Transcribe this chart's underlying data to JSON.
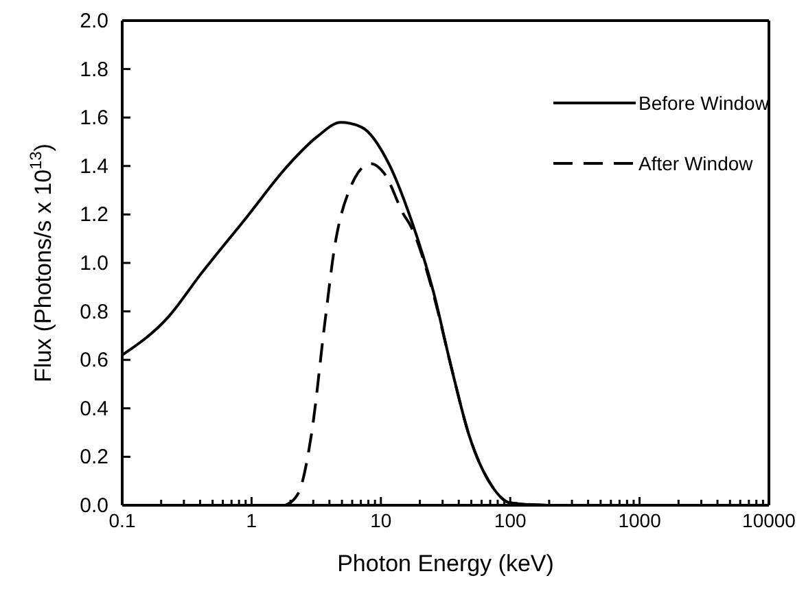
{
  "chart_data": {
    "type": "line",
    "xlabel": "Photon Energy (keV)",
    "ylabel": "Flux (Photons/s x 10$^{13}$)",
    "log": "x",
    "xlim": [
      0.1,
      10000
    ],
    "ylim": [
      0,
      2.0
    ],
    "xticks": [
      0.1,
      {
        "value": 0.2,
        "label": null
      },
      {
        "value": 0.3,
        "label": null
      },
      {
        "value": 0.4,
        "label": null
      },
      {
        "value": 0.5,
        "label": null
      },
      {
        "value": 0.6,
        "label": null
      },
      {
        "value": 0.7,
        "label": null
      },
      {
        "value": 0.8,
        "label": null
      },
      {
        "value": 0.9,
        "label": null
      },
      1,
      {
        "value": 2,
        "label": null
      },
      {
        "value": 3,
        "label": null
      },
      {
        "value": 4,
        "label": null
      },
      {
        "value": 5,
        "label": null
      },
      {
        "value": 6,
        "label": null
      },
      {
        "value": 7,
        "label": null
      },
      {
        "value": 8,
        "label": null
      },
      {
        "value": 9,
        "label": null
      },
      10,
      {
        "value": 20,
        "label": null
      },
      {
        "value": 30,
        "label": null
      },
      {
        "value": 40,
        "label": null
      },
      {
        "value": 50,
        "label": null
      },
      {
        "value": 60,
        "label": null
      },
      {
        "value": 70,
        "label": null
      },
      {
        "value": 80,
        "label": null
      },
      {
        "value": 90,
        "label": null
      },
      100,
      {
        "value": 200,
        "label": null
      },
      {
        "value": 300,
        "label": null
      },
      {
        "value": 400,
        "label": null
      },
      {
        "value": 500,
        "label": null
      },
      {
        "value": 600,
        "label": null
      },
      {
        "value": 700,
        "label": null
      },
      {
        "value": 800,
        "label": null
      },
      {
        "value": 900,
        "label": null
      },
      1000,
      {
        "value": 2000,
        "label": null
      },
      {
        "value": 3000,
        "label": null
      },
      {
        "value": 4000,
        "label": null
      },
      {
        "value": 5000,
        "label": null
      },
      {
        "value": 6000,
        "label": null
      },
      {
        "value": 7000,
        "label": null
      },
      {
        "value": 8000,
        "label": null
      },
      {
        "value": 9000,
        "label": null
      },
      10000
    ],
    "yticks": [
      {
        "value": 0,
        "label": "0.0"
      },
      0.2,
      0.4,
      0.6,
      0.8,
      {
        "value": 1,
        "label": "1.0"
      },
      1.2,
      1.4,
      1.6,
      1.8,
      {
        "value": 2,
        "label": "2.0"
      }
    ],
    "legend": "top right",
    "marker": "none",
    "series": [
      {
        "name": "Before Window",
        "color": "#000000",
        "line_style": "solid",
        "x": [
          0.1,
          0.23,
          0.4,
          0.89,
          1.97,
          3.2,
          4.9,
          7.1,
          11.5,
          17.1,
          25.5,
          35,
          48,
          72,
          100,
          200,
          10000
        ],
        "values": [
          0.62,
          0.78,
          0.95,
          1.18,
          1.41,
          1.52,
          1.58,
          1.56,
          1.41,
          1.18,
          0.88,
          0.57,
          0.29,
          0.08,
          0.01,
          0,
          0
        ]
      },
      {
        "name": "After Window",
        "color": "#000000",
        "line_style": "dashed",
        "x": [
          1.82,
          2.3,
          2.9,
          3.7,
          4.4,
          5.6,
          8.3,
          10.6,
          15,
          17.1,
          25.5,
          35,
          48,
          72,
          100,
          200
        ],
        "values": [
          0,
          0.05,
          0.29,
          0.76,
          1.07,
          1.29,
          1.41,
          1.37,
          1.2,
          1.15,
          0.87,
          0.57,
          0.29,
          0.08,
          0.01,
          0
        ]
      }
    ]
  }
}
